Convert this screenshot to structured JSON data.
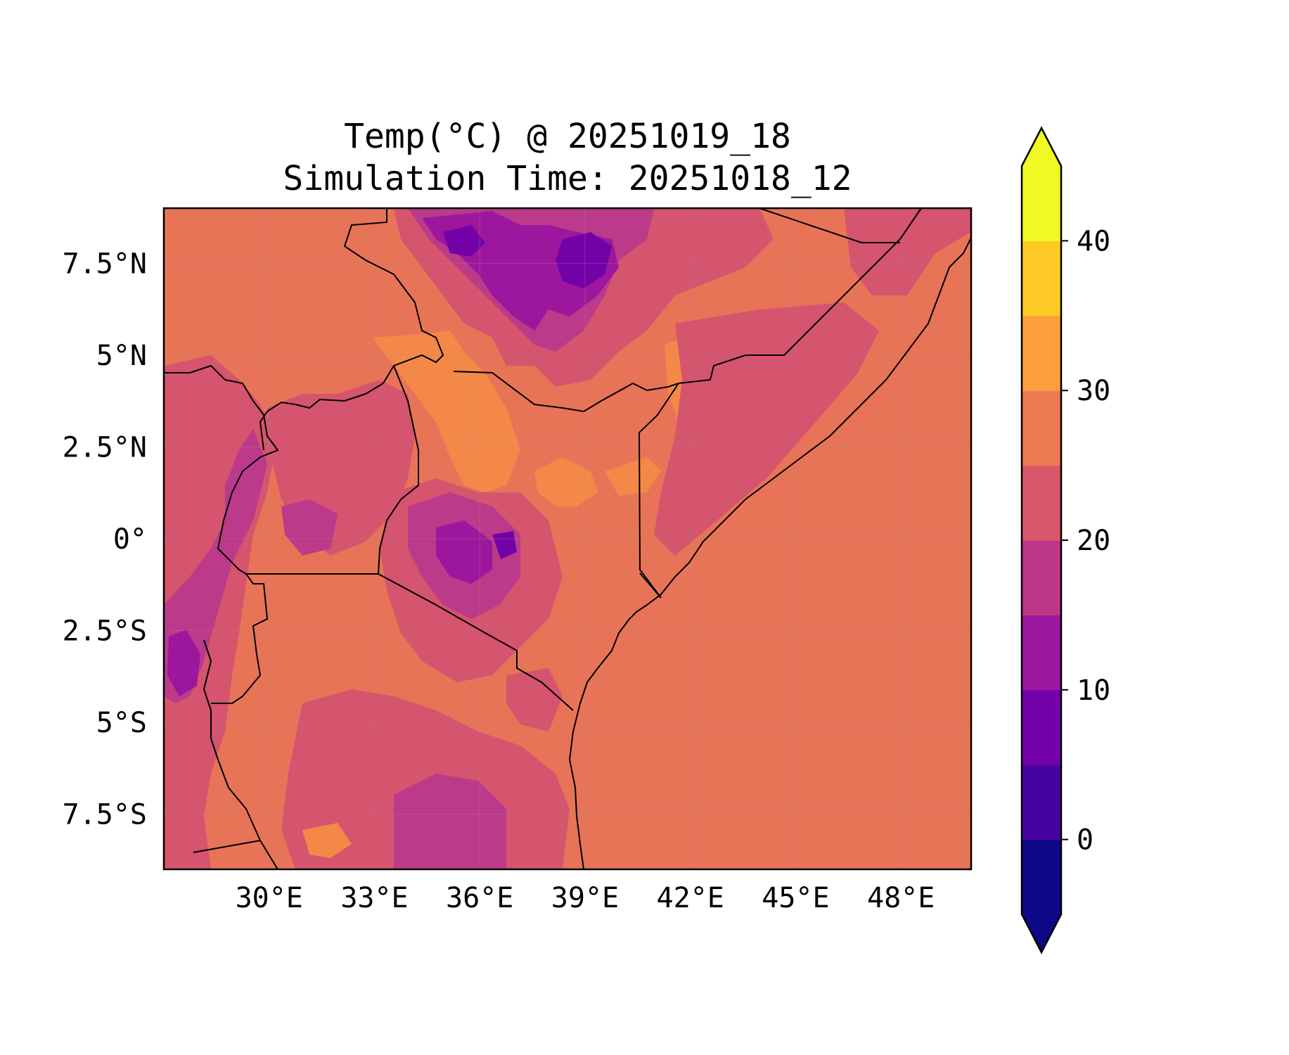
{
  "title": {
    "line1": "Temp(°C) @ 20251019_18",
    "line2": "Simulation Time: 20251018_12"
  },
  "map": {
    "lon_range": [
      27,
      50
    ],
    "lat_range": [
      -9,
      9
    ],
    "x_ticks": [
      {
        "value": 30,
        "label": "30°E"
      },
      {
        "value": 33,
        "label": "33°E"
      },
      {
        "value": 36,
        "label": "36°E"
      },
      {
        "value": 39,
        "label": "39°E"
      },
      {
        "value": 42,
        "label": "42°E"
      },
      {
        "value": 45,
        "label": "45°E"
      },
      {
        "value": 48,
        "label": "48°E"
      }
    ],
    "y_ticks": [
      {
        "value": 7.5,
        "label": "7.5°N"
      },
      {
        "value": 5,
        "label": "5°N"
      },
      {
        "value": 2.5,
        "label": "2.5°N"
      },
      {
        "value": 0,
        "label": "0°"
      },
      {
        "value": -2.5,
        "label": "2.5°S"
      },
      {
        "value": -5,
        "label": "5°S"
      },
      {
        "value": -7.5,
        "label": "7.5°S"
      }
    ],
    "grid": true,
    "field_colors": {
      "base": "#e87458",
      "mid": "#d5546e",
      "cool": "#bb3a8a",
      "cooler": "#9c179e",
      "coldest": "#7301a8",
      "warm": "#f48849",
      "ocean": "#e87458"
    }
  },
  "colorbar": {
    "min": -5,
    "max": 45,
    "extend": "both",
    "levels": [
      {
        "from": -5,
        "to": 0,
        "color": "#0d0887"
      },
      {
        "from": 0,
        "to": 5,
        "color": "#46039f"
      },
      {
        "from": 5,
        "to": 10,
        "color": "#7201a8"
      },
      {
        "from": 10,
        "to": 15,
        "color": "#9c179e"
      },
      {
        "from": 15,
        "to": 20,
        "color": "#bd3786"
      },
      {
        "from": 20,
        "to": 25,
        "color": "#d8576b"
      },
      {
        "from": 25,
        "to": 30,
        "color": "#ed7953"
      },
      {
        "from": 30,
        "to": 35,
        "color": "#fb9f3a"
      },
      {
        "from": 35,
        "to": 40,
        "color": "#fdca26"
      },
      {
        "from": 40,
        "to": 45,
        "color": "#f0f921"
      }
    ],
    "under_color": "#0d0887",
    "over_color": "#f0f921",
    "ticks": [
      {
        "value": 0,
        "label": "0"
      },
      {
        "value": 10,
        "label": "10"
      },
      {
        "value": 20,
        "label": "20"
      },
      {
        "value": 30,
        "label": "30"
      },
      {
        "value": 40,
        "label": "40"
      }
    ]
  }
}
